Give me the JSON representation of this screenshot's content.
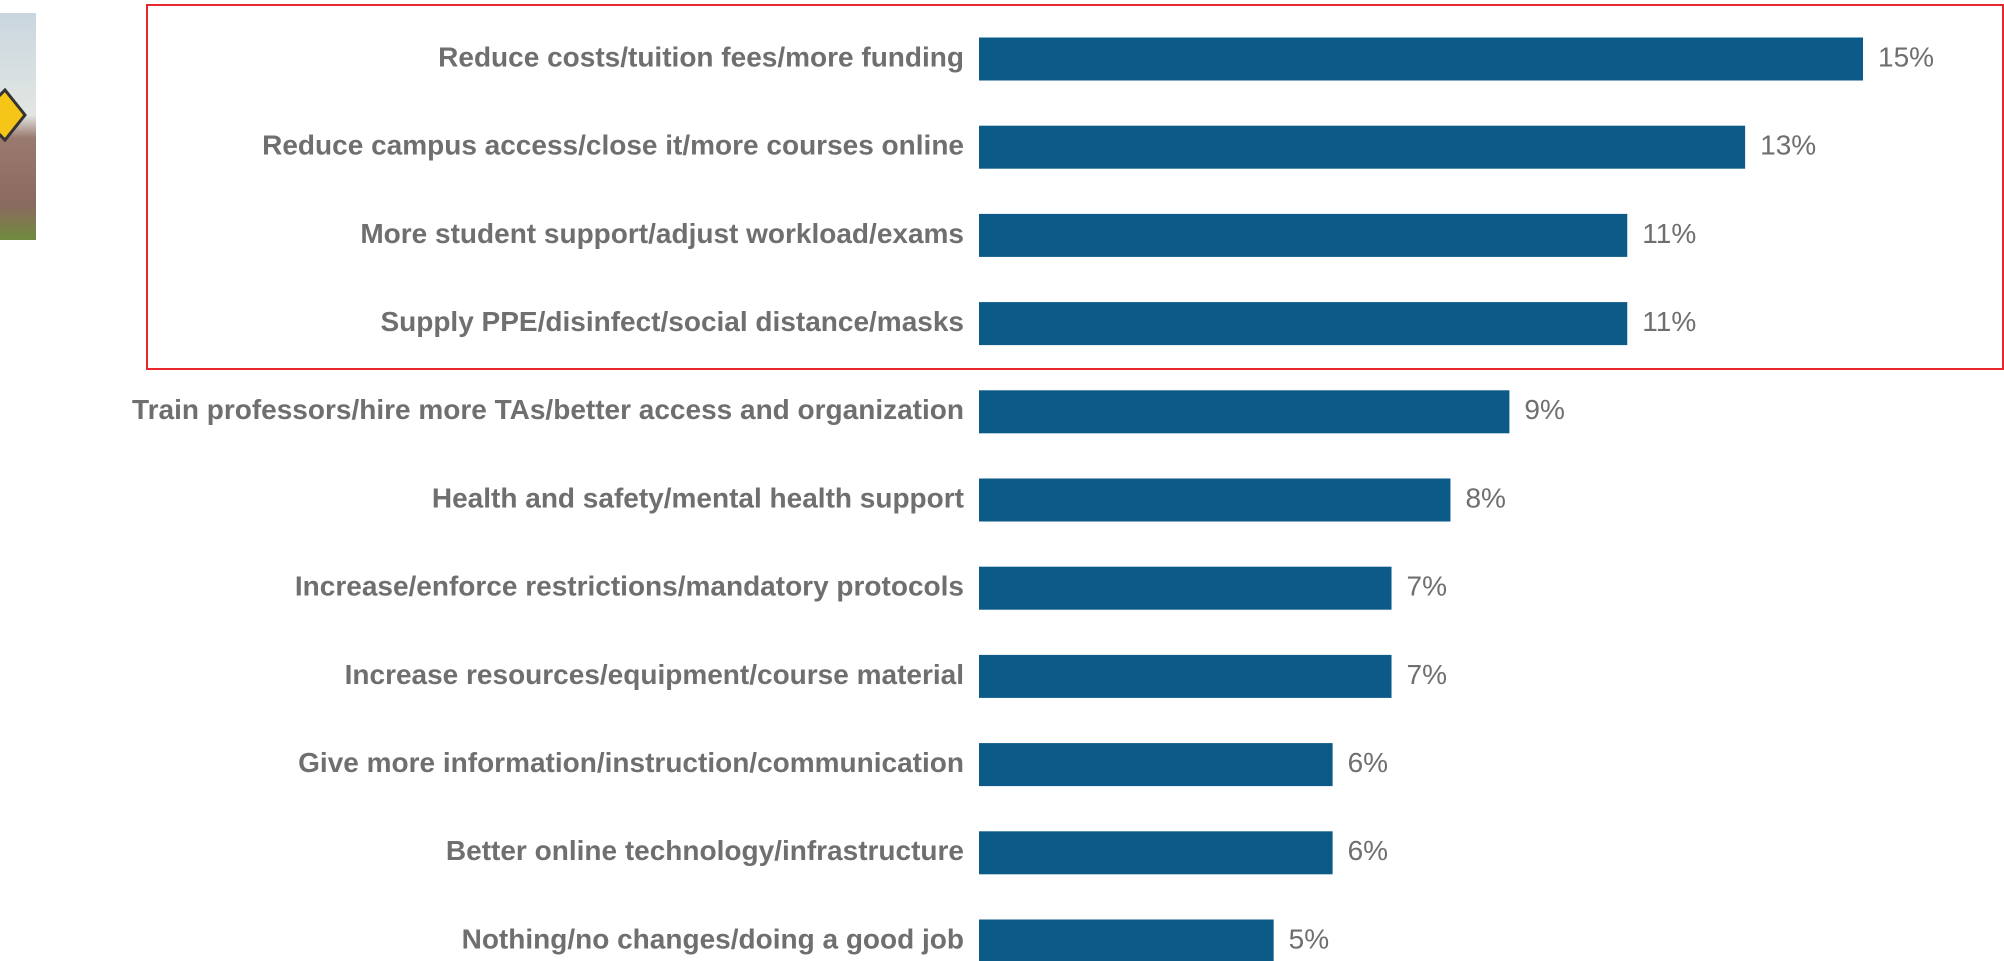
{
  "chart_data": {
    "type": "bar",
    "orientation": "horizontal",
    "categories": [
      "Reduce costs/tuition fees/more funding",
      "Reduce campus access/close it/more courses online",
      "More student support/adjust workload/exams",
      "Supply PPE/disinfect/social distance/masks",
      "Train professors/hire more TAs/better access and organization",
      "Health and safety/mental health support",
      "Increase/enforce restrictions/mandatory protocols",
      "Increase resources/equipment/course material",
      "Give more information/instruction/communication",
      "Better online technology/infrastructure",
      "Nothing/no changes/doing a good job"
    ],
    "values": [
      15,
      13,
      11,
      11,
      9,
      8,
      7,
      7,
      6,
      6,
      5
    ],
    "value_labels": [
      "15%",
      "13%",
      "11%",
      "11%",
      "9%",
      "8%",
      "7%",
      "7%",
      "6%",
      "6%",
      "5%"
    ],
    "color": "#0b5a88"
  }
}
